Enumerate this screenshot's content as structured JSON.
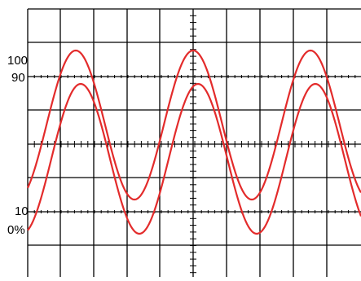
{
  "scale_labels": {
    "l100": "100",
    "l90": "90",
    "l10": "10",
    "l0": "0%"
  },
  "trace_color": "#e32b2b",
  "waveforms": {
    "cycles_visible": 3,
    "trace_count": 2
  }
}
